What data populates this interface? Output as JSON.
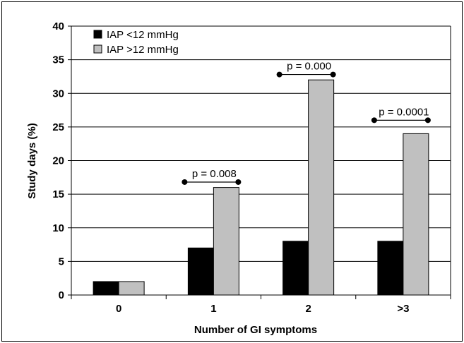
{
  "chart_data": {
    "type": "bar",
    "categories": [
      "0",
      "1",
      "2",
      ">3"
    ],
    "series": [
      {
        "name": "IAP <12 mmHg",
        "values": [
          2,
          7,
          8,
          8
        ],
        "color": "#000000"
      },
      {
        "name": "IAP >12 mmHg",
        "values": [
          2,
          16,
          32,
          24
        ],
        "color": "#c0c0c0"
      }
    ],
    "xlabel": "Number of GI symptoms",
    "ylabel": "Study days (%)",
    "ylim": [
      0,
      40
    ],
    "yticks": [
      "0",
      "5",
      "10",
      "15",
      "20",
      "25",
      "30",
      "35",
      "40"
    ],
    "grid": true,
    "legend_position": "top-left",
    "annotations": [
      {
        "text": "p = 0.008",
        "category": "1",
        "y": 16.8
      },
      {
        "text": "p = 0.000",
        "category": "2",
        "y": 32.8
      },
      {
        "text": "p = 0.0001",
        "category": ">3",
        "y": 26.0
      }
    ]
  }
}
